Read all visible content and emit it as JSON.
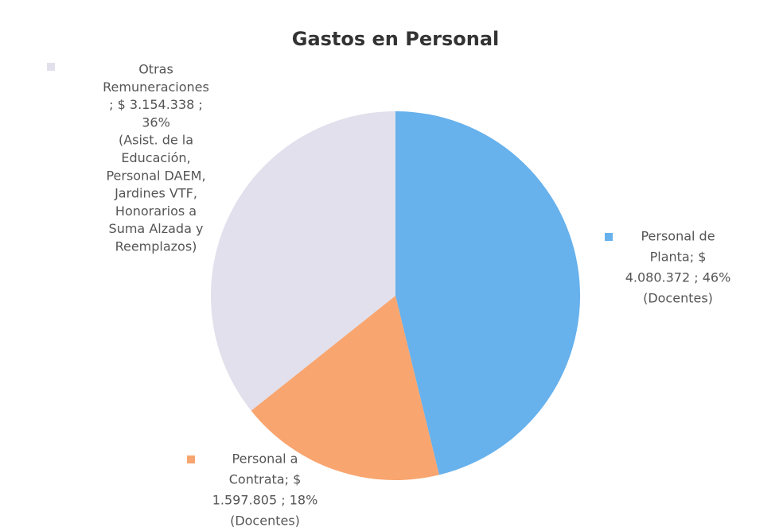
{
  "chart_data": {
    "type": "pie",
    "title": "Gastos en Personal",
    "categories": [
      "Personal de Planta",
      "Personal a Contrata",
      "Otras Remuneraciones"
    ],
    "values": [
      4080372,
      1597805,
      3154338
    ],
    "colors": [
      "#67b1ec",
      "#f8a56f",
      "#e1e0ec"
    ],
    "data_labels": [
      [
        "Personal de",
        "Planta; $",
        "4.080.372 ; 46%",
        "(Docentes)"
      ],
      [
        "Personal a",
        "Contrata; $",
        "1.597.805 ; 18%",
        "(Docentes)"
      ],
      [
        "Otras",
        "Remuneraciones",
        "; $ 3.154.338 ;",
        "36%",
        "(Asist. de la",
        "Educación,",
        "Personal DAEM,",
        "Jardines VTF,",
        "Honorarios a",
        "Suma Alzada y",
        "Reemplazos)"
      ]
    ]
  }
}
